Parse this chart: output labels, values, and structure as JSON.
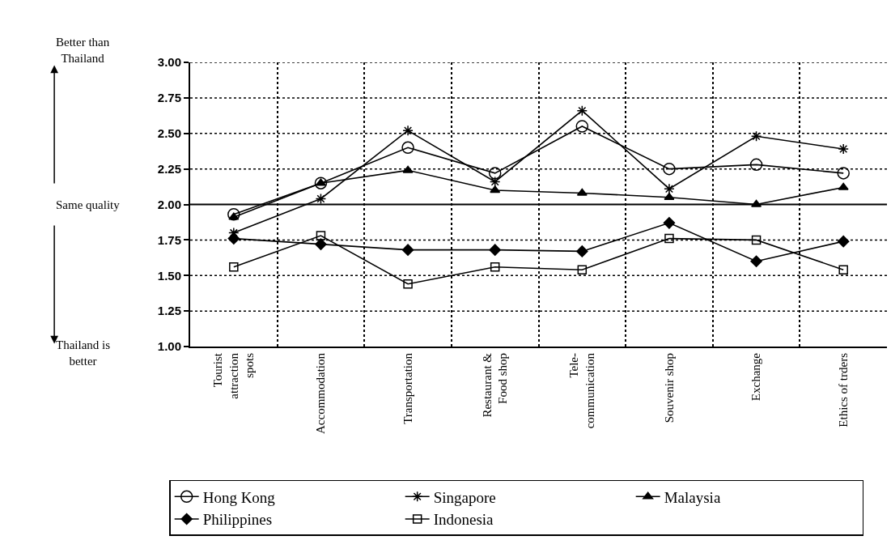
{
  "chart_data": {
    "type": "line",
    "categories": [
      "Tourist\nattraction\nspots",
      "Accommodation",
      "Transportation",
      "Restaurant &\nFood shop",
      "Tele-\ncommunication",
      "Souvenir shop",
      "Exchange",
      "Ethics of trders"
    ],
    "series": [
      {
        "name": "Hong Kong",
        "color": "#000000",
        "marker": "circle",
        "values": [
          1.93,
          2.15,
          2.4,
          2.22,
          2.55,
          2.25,
          2.28,
          2.22
        ]
      },
      {
        "name": "Singapore",
        "color": "#000000",
        "marker": "cross",
        "values": [
          1.8,
          2.04,
          2.52,
          2.16,
          2.66,
          2.11,
          2.48,
          2.39
        ]
      },
      {
        "name": "Malaysia",
        "color": "#000000",
        "marker": "triangle",
        "values": [
          1.91,
          2.15,
          2.24,
          2.1,
          2.08,
          2.05,
          2.0,
          2.12
        ]
      },
      {
        "name": "Philippines",
        "color": "#000000",
        "marker": "diamond",
        "values": [
          1.76,
          1.72,
          1.68,
          1.68,
          1.67,
          1.87,
          1.6,
          1.74
        ]
      },
      {
        "name": "Indonesia",
        "color": "#000000",
        "marker": "square",
        "values": [
          1.56,
          1.78,
          1.44,
          1.56,
          1.54,
          1.76,
          1.75,
          1.54
        ]
      }
    ],
    "ylim": [
      1.0,
      3.0
    ],
    "yticks": [
      {
        "value": 1.0,
        "label": "1.00"
      },
      {
        "value": 1.25,
        "label": "1.25"
      },
      {
        "value": 1.5,
        "label": "1.50"
      },
      {
        "value": 1.75,
        "label": "1.75"
      },
      {
        "value": 2.0,
        "label": "2.00"
      },
      {
        "value": 2.25,
        "label": "2.25"
      },
      {
        "value": 2.5,
        "label": "2.50"
      },
      {
        "value": 2.75,
        "label": "2.75"
      },
      {
        "value": 3.0,
        "label": "3.00"
      }
    ],
    "ref_lines": [
      {
        "axis": "y",
        "value": 2.0,
        "color": "#000000",
        "line_style": "solid"
      }
    ],
    "annotations": [
      "Better than\nThailand",
      "Same quality",
      "Thailand is\nbetter"
    ],
    "grid": true,
    "legend": "bottom",
    "line_style": "solid"
  }
}
